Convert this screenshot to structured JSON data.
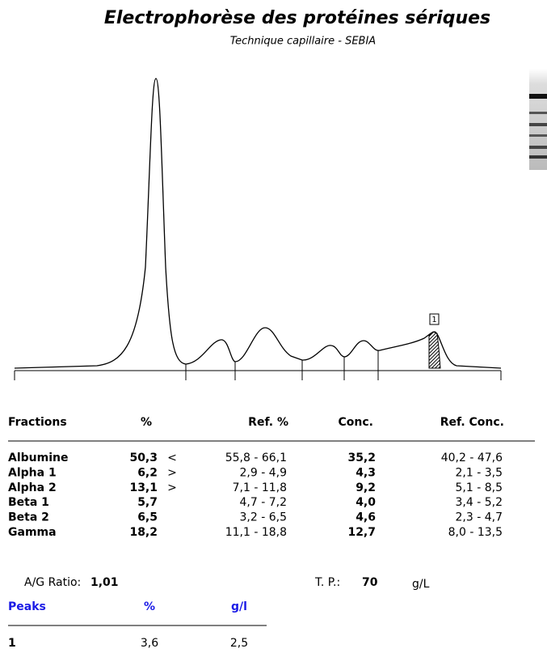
{
  "header": {
    "title": "Electrophorèse des protéines sériques",
    "subtitle": "Technique capillaire - SEBIA"
  },
  "graph": {
    "peak_marker": "1"
  },
  "fractions": {
    "columns": [
      "Fractions",
      "%",
      "Ref. %",
      "Conc.",
      "Ref. Conc."
    ],
    "rows": [
      [
        "Albumine",
        "50,3",
        "<",
        "55,8 - 66,1",
        "35,2",
        "40,2 - 47,6"
      ],
      [
        "Alpha 1",
        "6,2",
        ">",
        "2,9 - 4,9",
        "4,3",
        "2,1 - 3,5"
      ],
      [
        "Alpha 2",
        "13,1",
        ">",
        "7,1 - 11,8",
        "9,2",
        "5,1 - 8,5"
      ],
      [
        "Beta 1",
        "5,7",
        null,
        "4,7 - 7,2",
        "4,0",
        "3,4 - 5,2"
      ],
      [
        "Beta 2",
        "6,5",
        null,
        "3,2 - 6,5",
        "4,6",
        "2,3 - 4,7"
      ],
      [
        "Gamma",
        "18,2",
        null,
        "11,1 - 18,8",
        "12,7",
        "8,0 - 13,5"
      ]
    ]
  },
  "summary": {
    "ag_ratio_label": "A/G Ratio:",
    "ag_ratio": "1,01",
    "tp_label": "T. P.:",
    "tp": "70",
    "unit": "g/L"
  },
  "peaks": {
    "columns": [
      "Peaks",
      "%",
      "g/l"
    ],
    "rows": [
      [
        "1",
        "3,6",
        "2,5"
      ]
    ]
  }
}
